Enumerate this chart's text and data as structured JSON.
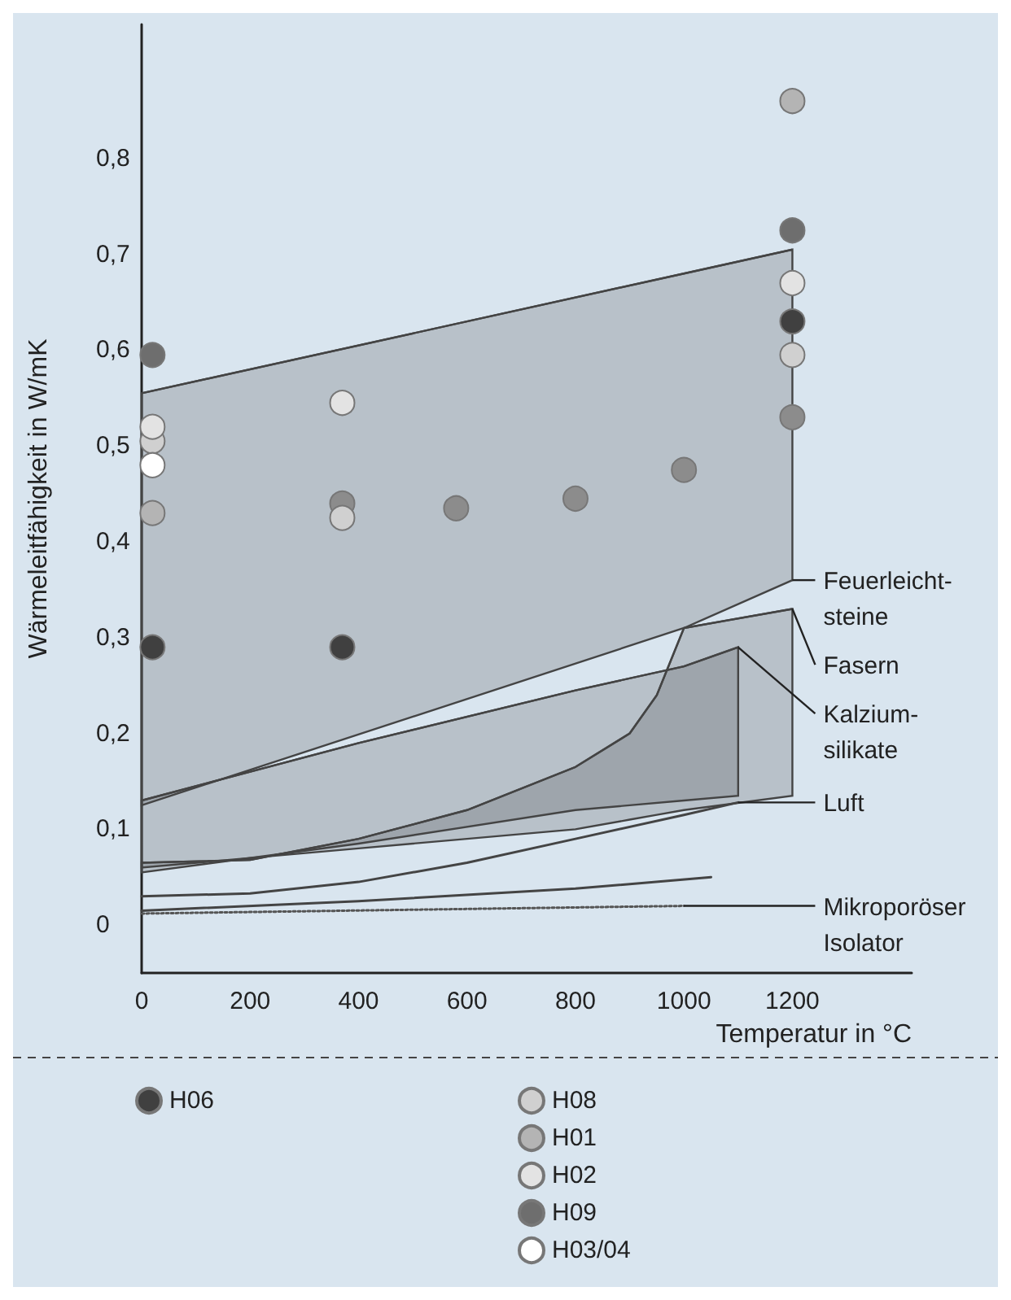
{
  "chart_data": {
    "type": "scatter",
    "xlabel": "Temperatur in °C",
    "ylabel": "Wärmeleitfähigkeit in W/mK",
    "xlim": [
      0,
      1420
    ],
    "ylim": [
      -0.05,
      0.94
    ],
    "xticks": [
      0,
      200,
      400,
      600,
      800,
      1000,
      1200
    ],
    "yticks": [
      {
        "value": 0,
        "label": "0"
      },
      {
        "value": 0.1,
        "label": "0,1"
      },
      {
        "value": 0.2,
        "label": "0,2"
      },
      {
        "value": 0.3,
        "label": "0,3"
      },
      {
        "value": 0.4,
        "label": "0,4"
      },
      {
        "value": 0.5,
        "label": "0,5"
      },
      {
        "value": 0.6,
        "label": "0,6"
      },
      {
        "value": 0.7,
        "label": "0,7"
      },
      {
        "value": 0.8,
        "label": "0,8"
      }
    ],
    "grid": false,
    "legend": "bottom",
    "marker": "circle",
    "series": [
      {
        "type": "line",
        "marker": "none",
        "color": "#444444",
        "x": [
          0,
          1000,
          1200
        ],
        "lower": [
          0.125,
          0.31,
          0.36
        ],
        "upper": [
          0.555,
          0.68,
          0.705
        ],
        "values": [
          0.555,
          0.68,
          0.705
        ]
      },
      {
        "type": "line",
        "marker": "none",
        "color": "#444444",
        "x": [
          0,
          200,
          400,
          600,
          800,
          900,
          950,
          1000,
          1200
        ],
        "lower": [
          0.06,
          0.07,
          0.08,
          0.09,
          0.1,
          0.11,
          0.115,
          0.12,
          0.135
        ],
        "upper": [
          0.065,
          0.068,
          0.09,
          0.12,
          0.165,
          0.2,
          0.24,
          0.31,
          0.33
        ],
        "values": [
          0.065,
          0.068,
          0.09,
          0.12,
          0.165,
          0.2,
          0.24,
          0.31,
          0.33
        ]
      },
      {
        "type": "line",
        "marker": "none",
        "color": "#444444",
        "x": [
          0,
          400,
          800,
          1000,
          1100
        ],
        "lower": [
          0.055,
          0.085,
          0.12,
          0.13,
          0.135
        ],
        "upper": [
          0.13,
          0.19,
          0.245,
          0.27,
          0.29
        ],
        "values": [
          0.13,
          0.19,
          0.245,
          0.27,
          0.29
        ]
      },
      {
        "type": "line",
        "marker": "none",
        "color": "#444444",
        "line_style": "solid",
        "x": [
          0,
          200,
          400,
          600,
          800,
          1000,
          1100
        ],
        "values": [
          0.03,
          0.033,
          0.045,
          0.065,
          0.09,
          0.115,
          0.128
        ]
      },
      {
        "type": "line",
        "marker": "none",
        "color": "#444444",
        "line_style": "solid",
        "x": [
          0,
          400,
          800,
          1050
        ],
        "values": [
          0.015,
          0.025,
          0.038,
          0.05
        ]
      },
      {
        "type": "line",
        "marker": "none",
        "color": "#555555",
        "line_style": "dotted",
        "x": [
          0,
          1000
        ],
        "values": [
          0.012,
          0.02
        ]
      },
      {
        "name": "H06",
        "color": "#404040",
        "x": [
          20,
          370,
          1200
        ],
        "values": [
          0.29,
          0.29,
          0.63
        ]
      },
      {
        "color": "#8c8c8c",
        "x": [
          370,
          580,
          800,
          1000,
          1200
        ],
        "values": [
          0.44,
          0.435,
          0.445,
          0.475,
          0.53
        ]
      },
      {
        "name": "H08",
        "color": "#d0d0d0",
        "x": [
          20,
          370,
          1200
        ],
        "values": [
          0.505,
          0.425,
          0.595
        ]
      },
      {
        "name": "H01",
        "color": "#b4b4b4",
        "x": [
          20,
          1200
        ],
        "values": [
          0.43,
          0.86
        ]
      },
      {
        "name": "H02",
        "color": "#e3e3e3",
        "x": [
          20,
          370,
          1200
        ],
        "values": [
          0.52,
          0.545,
          0.67
        ]
      },
      {
        "name": "H09",
        "color": "#6e6e6e",
        "x": [
          20,
          1200
        ],
        "values": [
          0.595,
          0.725
        ]
      },
      {
        "name": "H03/04",
        "color": "#ffffff",
        "x": [
          20
        ],
        "values": [
          0.48
        ]
      }
    ],
    "annotations": [
      {
        "text": "Feuerleicht-\nsteine",
        "x": 1200,
        "y": 0.36
      },
      {
        "text": "Fasern",
        "x": 1200,
        "y": 0.33
      },
      {
        "text": "Kalzium-\nsilikate",
        "x": 1100,
        "y": 0.29
      },
      {
        "text": "Luft",
        "x": 1100,
        "y": 0.128
      },
      {
        "text": "Mikroporöser\nIsolator",
        "x": 1000,
        "y": 0.02
      }
    ]
  }
}
